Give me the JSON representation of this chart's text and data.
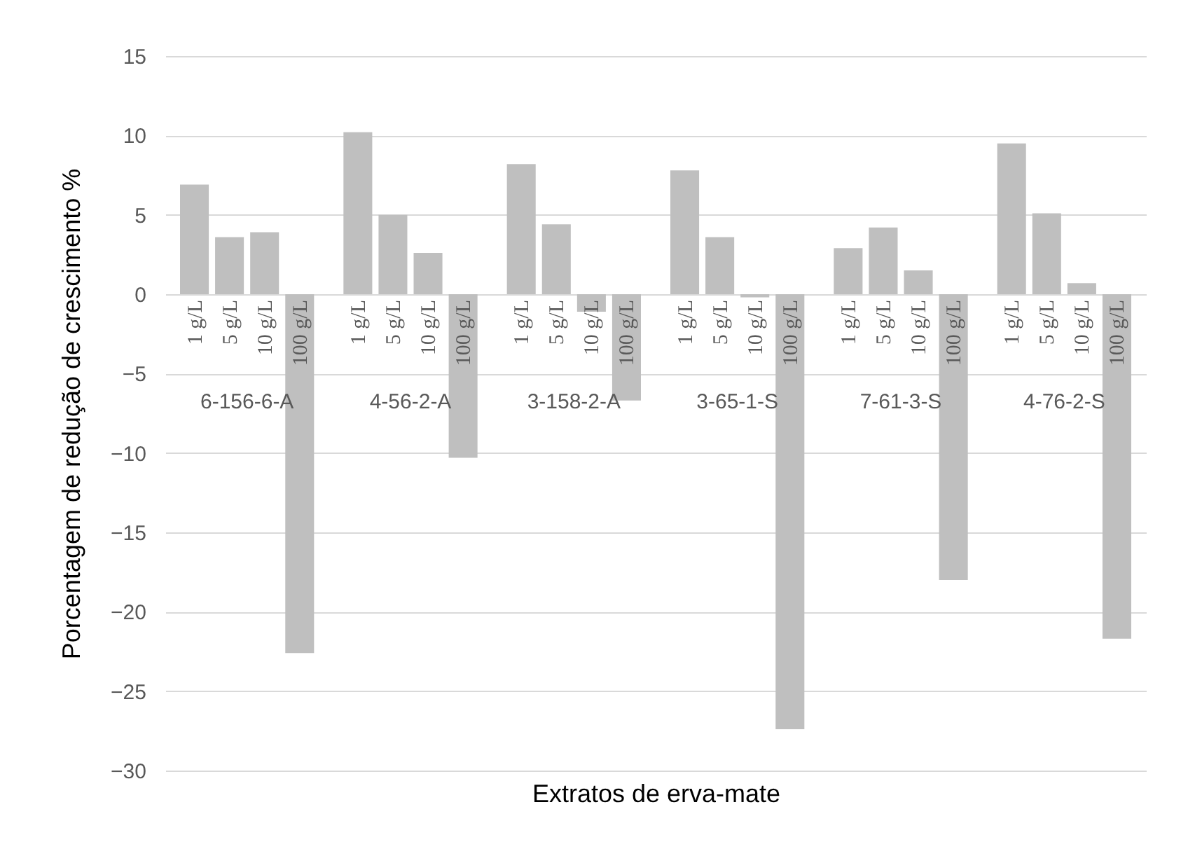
{
  "chart_data": {
    "type": "bar",
    "xlabel": "Extratos de erva-mate",
    "ylabel": "Porcentagem de redução de crescimento %",
    "categories": [
      "6-156-6-A",
      "4-56-2-A",
      "3-158-2-A",
      "3-65-1-S",
      "7-61-3-S",
      "4-76-2-S"
    ],
    "series": [
      {
        "name": "1 g/L",
        "color": "#bfbfbf",
        "values": [
          6.9,
          10.2,
          8.2,
          7.8,
          2.9,
          9.5
        ]
      },
      {
        "name": "5 g/L",
        "color": "#bfbfbf",
        "values": [
          3.6,
          5.0,
          4.4,
          3.6,
          4.2,
          5.1
        ]
      },
      {
        "name": "10 g/L",
        "color": "#bfbfbf",
        "values": [
          3.9,
          2.6,
          -1.1,
          -0.2,
          1.5,
          0.7
        ]
      },
      {
        "name": "100 g/L",
        "color": "#bfbfbf",
        "values": [
          -22.6,
          -10.3,
          -6.7,
          -27.4,
          -18.0,
          -21.7
        ]
      }
    ],
    "ylim": [
      -30,
      15
    ],
    "yticks": [
      -30,
      -25,
      -20,
      -15,
      -10,
      -5,
      0,
      5,
      10,
      15
    ],
    "grid": "y"
  }
}
